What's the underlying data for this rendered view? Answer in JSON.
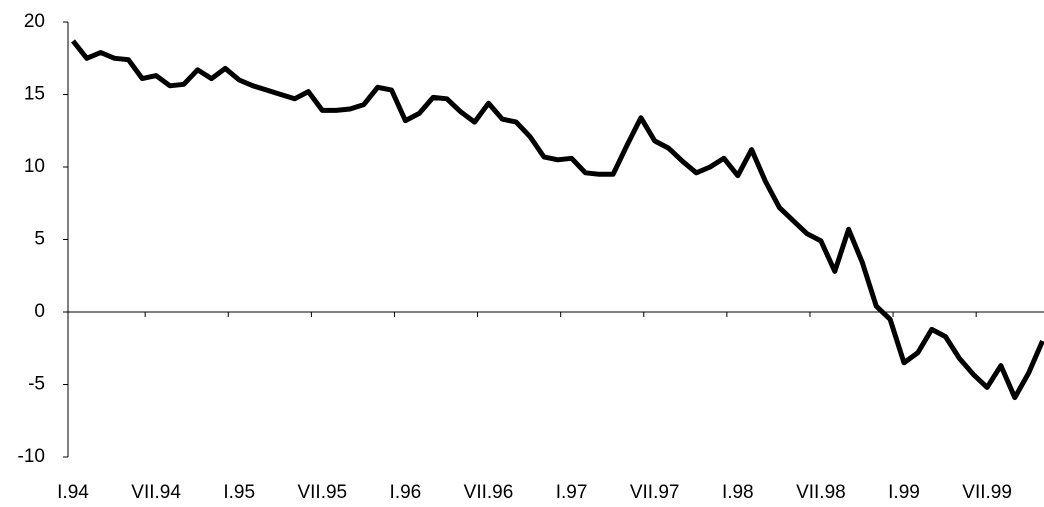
{
  "chart_data": {
    "type": "line",
    "categories": [
      "I.94",
      null,
      null,
      null,
      null,
      null,
      "VII.94",
      null,
      null,
      null,
      null,
      null,
      "I.95",
      null,
      null,
      null,
      null,
      null,
      "VII.95",
      null,
      null,
      null,
      null,
      null,
      "I.96",
      null,
      null,
      null,
      null,
      null,
      "VII.96",
      null,
      null,
      null,
      null,
      null,
      "I.97",
      null,
      null,
      null,
      null,
      null,
      "VII.97",
      null,
      null,
      null,
      null,
      null,
      "I.98",
      null,
      null,
      null,
      null,
      null,
      "VII.98",
      null,
      null,
      null,
      null,
      null,
      "I.99",
      null,
      null,
      null,
      null,
      null,
      "VII.99",
      null,
      null,
      null,
      null
    ],
    "values": [
      18.7,
      17.5,
      17.9,
      17.5,
      17.4,
      16.1,
      16.3,
      15.6,
      15.7,
      16.7,
      16.1,
      16.8,
      16.0,
      15.6,
      15.3,
      15.0,
      14.7,
      15.2,
      13.9,
      13.9,
      14.0,
      14.3,
      15.5,
      15.3,
      13.2,
      13.7,
      14.8,
      14.7,
      13.8,
      13.1,
      14.4,
      13.3,
      13.1,
      12.1,
      10.7,
      10.5,
      10.6,
      9.6,
      9.5,
      9.5,
      11.5,
      13.4,
      11.8,
      11.3,
      10.4,
      9.6,
      10.0,
      10.6,
      9.4,
      11.2,
      9.0,
      7.2,
      6.3,
      5.4,
      4.9,
      2.8,
      5.7,
      3.4,
      0.4,
      -0.5,
      -3.5,
      -2.8,
      -1.2,
      -1.7,
      -3.2,
      -4.3,
      -5.2,
      -3.7,
      -5.9,
      -4.2,
      -2.0
    ],
    "color": "#000000",
    "ylim": [
      -10,
      20
    ],
    "yticks": [
      -10,
      -5,
      0,
      5,
      10,
      15,
      20
    ]
  }
}
